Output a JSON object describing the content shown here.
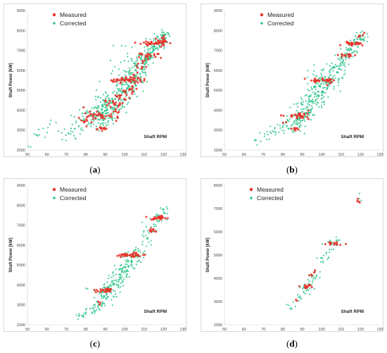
{
  "captions": [
    "a",
    "b",
    "c",
    "d"
  ],
  "colors": {
    "measured": "#e8332a",
    "corrected": "#2bc48a",
    "frame": "#d9d9d9",
    "grid": "#efefef"
  },
  "chart_data": [
    {
      "type": "scatter",
      "panel": "a",
      "ylabel": "Shaft Power [kW]",
      "xlabel": "Shaft RPM",
      "xlim": [
        50,
        130
      ],
      "ylim": [
        2000,
        9000
      ],
      "xticks": [
        50,
        60,
        70,
        80,
        90,
        100,
        110,
        120,
        130
      ],
      "yticks": [
        2000,
        3000,
        4000,
        5000,
        6000,
        7000,
        8000,
        9000
      ],
      "legend": "top-left",
      "series": [
        {
          "name": "Measured",
          "clusters": [
            [
              80,
              3500,
              1.5,
              300,
              10
            ],
            [
              84,
              3650,
              1.0,
              100,
              6
            ],
            [
              86,
              3060,
              3,
              40,
              14
            ],
            [
              88,
              3700,
              4,
              80,
              30
            ],
            [
              91,
              4250,
              1.0,
              150,
              6
            ],
            [
              95,
              4000,
              1.2,
              400,
              8
            ],
            [
              96,
              4300,
              2,
              60,
              10
            ],
            [
              100,
              5500,
              5,
              60,
              40
            ],
            [
              101,
              4900,
              1.2,
              200,
              10
            ],
            [
              104,
              5600,
              1.5,
              250,
              10
            ],
            [
              104,
              5100,
              1.0,
              200,
              8
            ],
            [
              107,
              6000,
              1.0,
              150,
              6
            ],
            [
              113,
              6750,
              3,
              60,
              20
            ],
            [
              115,
              7350,
              4,
              50,
              30
            ],
            [
              118,
              7450,
              2,
              100,
              12
            ],
            [
              120,
              7700,
              1.0,
              150,
              8
            ],
            [
              110,
              6300,
              1.0,
              150,
              6
            ],
            [
              97,
              4600,
              1.0,
              150,
              6
            ]
          ]
        },
        {
          "name": "Corrected",
          "clusters": [
            [
              51,
              2300,
              1.5,
              150,
              4
            ],
            [
              55,
              2700,
              2,
              200,
              6
            ],
            [
              60,
              2900,
              2,
              200,
              6
            ],
            [
              68,
              2900,
              3,
              300,
              10
            ],
            [
              73,
              2800,
              2,
              200,
              8
            ],
            [
              78,
              3300,
              3,
              300,
              14
            ],
            [
              82,
              3600,
              3,
              300,
              25
            ],
            [
              86,
              3600,
              3,
              250,
              30
            ],
            [
              88,
              3900,
              3,
              400,
              35
            ],
            [
              91,
              4050,
              2,
              400,
              40
            ],
            [
              94,
              4300,
              2.5,
              500,
              45
            ],
            [
              97,
              4750,
              2.5,
              450,
              45
            ],
            [
              100,
              5100,
              2.5,
              450,
              45
            ],
            [
              103,
              5400,
              2.5,
              400,
              40
            ],
            [
              106,
              5900,
              2,
              400,
              40
            ],
            [
              109,
              6300,
              2,
              350,
              35
            ],
            [
              112,
              6700,
              2,
              300,
              35
            ],
            [
              115,
              7100,
              2,
              200,
              30
            ],
            [
              118,
              7400,
              1.5,
              200,
              30
            ],
            [
              121,
              7800,
              1.2,
              150,
              25
            ],
            [
              100,
              6300,
              4,
              500,
              15
            ],
            [
              90,
              4600,
              4,
              400,
              15
            ],
            [
              108,
              6700,
              3,
              300,
              12
            ]
          ]
        }
      ]
    },
    {
      "type": "scatter",
      "panel": "b",
      "ylabel": "Shaft Power [kW]",
      "xlabel": "Shaft RPM",
      "xlim": [
        50,
        130
      ],
      "ylim": [
        2000,
        9000
      ],
      "xticks": [
        50,
        60,
        70,
        80,
        90,
        100,
        110,
        120,
        130
      ],
      "yticks": [
        2000,
        3000,
        4000,
        5000,
        6000,
        7000,
        8000,
        9000
      ],
      "legend": "top-right",
      "series": [
        {
          "name": "Measured",
          "clusters": [
            [
              86,
              3060,
              1.5,
              40,
              8
            ],
            [
              88,
              3700,
              3,
              60,
              25
            ],
            [
              92,
              3650,
              1.0,
              100,
              6
            ],
            [
              100,
              5500,
              4,
              50,
              30
            ],
            [
              104,
              5400,
              1.0,
              100,
              6
            ],
            [
              113,
              6750,
              2,
              50,
              15
            ],
            [
              116,
              7350,
              3,
              50,
              25
            ],
            [
              120,
              7600,
              1.0,
              200,
              6
            ],
            [
              80,
              3400,
              0.5,
              50,
              2
            ]
          ]
        },
        {
          "name": "Corrected",
          "clusters": [
            [
              67,
              2400,
              2,
              150,
              6
            ],
            [
              72,
              2700,
              2,
              200,
              8
            ],
            [
              77,
              3000,
              2,
              200,
              10
            ],
            [
              81,
              3200,
              2,
              200,
              15
            ],
            [
              85,
              3400,
              2,
              250,
              20
            ],
            [
              88,
              3600,
              2,
              250,
              30
            ],
            [
              91,
              3850,
              2,
              300,
              35
            ],
            [
              94,
              4200,
              2,
              350,
              40
            ],
            [
              97,
              4700,
              2,
              400,
              40
            ],
            [
              100,
              5000,
              2,
              400,
              40
            ],
            [
              103,
              5400,
              2,
              350,
              35
            ],
            [
              106,
              5800,
              2,
              350,
              30
            ],
            [
              109,
              6200,
              2,
              300,
              30
            ],
            [
              112,
              6600,
              2,
              250,
              25
            ],
            [
              115,
              7000,
              2,
              200,
              25
            ],
            [
              118,
              7400,
              1.5,
              150,
              25
            ],
            [
              121,
              7800,
              1.2,
              150,
              15
            ],
            [
              97,
              5700,
              3,
              200,
              12
            ],
            [
              90,
              4300,
              3,
              300,
              10
            ]
          ]
        }
      ]
    },
    {
      "type": "scatter",
      "panel": "c",
      "ylabel": "Shaft Power [kW]",
      "xlabel": "Shaft RPM",
      "xlim": [
        50,
        130
      ],
      "ylim": [
        2000,
        9000
      ],
      "xticks": [
        50,
        60,
        70,
        80,
        90,
        100,
        110,
        120,
        130
      ],
      "yticks": [
        2000,
        3000,
        4000,
        5000,
        6000,
        7000,
        8000,
        9000
      ],
      "legend": "top-left",
      "series": [
        {
          "name": "Measured",
          "clusters": [
            [
              87,
              3060,
              0.5,
              40,
              3
            ],
            [
              89,
              3700,
              2.5,
              50,
              20
            ],
            [
              92,
              3700,
              1.0,
              60,
              8
            ],
            [
              100,
              5500,
              2.5,
              40,
              20
            ],
            [
              106,
              5500,
              2.5,
              50,
              20
            ],
            [
              114,
              6750,
              1.2,
              50,
              10
            ],
            [
              117,
              7350,
              2.5,
              50,
              20
            ],
            [
              119,
              7400,
              1.0,
              50,
              8
            ]
          ]
        },
        {
          "name": "Corrected",
          "clusters": [
            [
              78,
              2400,
              1.5,
              100,
              10
            ],
            [
              82,
              2650,
              2,
              120,
              15
            ],
            [
              86,
              3000,
              2,
              150,
              20
            ],
            [
              89,
              3400,
              2,
              200,
              25
            ],
            [
              92,
              3700,
              2,
              200,
              30
            ],
            [
              95,
              4100,
              2,
              250,
              30
            ],
            [
              98,
              4500,
              2,
              300,
              30
            ],
            [
              101,
              4900,
              2,
              300,
              30
            ],
            [
              104,
              5300,
              2,
              250,
              25
            ],
            [
              107,
              5600,
              2,
              200,
              20
            ],
            [
              111,
              6300,
              2,
              250,
              15
            ],
            [
              115,
              6900,
              2,
              200,
              15
            ],
            [
              118,
              7300,
              1.5,
              150,
              15
            ],
            [
              121,
              7800,
              1.2,
              150,
              10
            ],
            [
              80,
              3800,
              2,
              100,
              2
            ]
          ]
        }
      ]
    },
    {
      "type": "scatter",
      "panel": "d",
      "ylabel": "Shaft Power [kW]",
      "xlabel": "Shaft RPM",
      "xlim": [
        50,
        130
      ],
      "ylim": [
        2000,
        8000
      ],
      "xticks": [
        50,
        60,
        70,
        80,
        90,
        100,
        110,
        120,
        130
      ],
      "yticks": [
        2000,
        3000,
        4000,
        5000,
        6000,
        7000,
        8000
      ],
      "legend": "top-left",
      "series": [
        {
          "name": "Measured",
          "clusters": [
            [
              87,
              3060,
              0.3,
              30,
              2
            ],
            [
              92,
              3650,
              1.5,
              50,
              10
            ],
            [
              94,
              3700,
              0.8,
              60,
              5
            ],
            [
              95,
              4100,
              0.5,
              50,
              3
            ],
            [
              96,
              4300,
              0.5,
              50,
              3
            ],
            [
              107,
              5520,
              2,
              40,
              15
            ],
            [
              119,
              7360,
              0.5,
              50,
              5
            ]
          ]
        },
        {
          "name": "Corrected",
          "clusters": [
            [
              84,
              2800,
              1.2,
              80,
              6
            ],
            [
              88,
              3200,
              1.5,
              120,
              8
            ],
            [
              91,
              3500,
              1.5,
              150,
              12
            ],
            [
              93,
              3700,
              1.5,
              150,
              12
            ],
            [
              96,
              4100,
              1.5,
              150,
              8
            ],
            [
              99,
              4600,
              1.5,
              200,
              8
            ],
            [
              102,
              5000,
              1.5,
              200,
              8
            ],
            [
              105,
              5400,
              1.5,
              150,
              12
            ],
            [
              108,
              5600,
              1.0,
              100,
              6
            ],
            [
              120,
              7500,
              0.5,
              100,
              3
            ]
          ]
        }
      ]
    }
  ]
}
